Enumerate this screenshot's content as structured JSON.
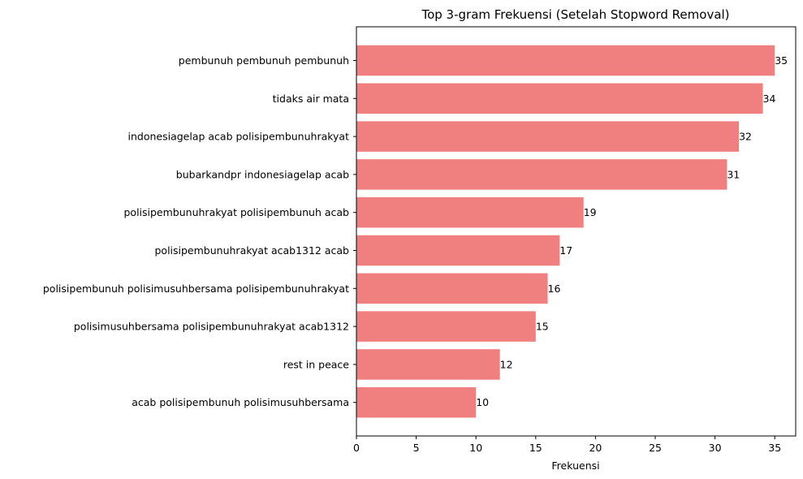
{
  "chart_data": {
    "type": "bar",
    "orientation": "horizontal",
    "title": "Top 3-gram Frekuensi (Setelah Stopword Removal)",
    "xlabel": "Frekuensi",
    "ylabel": "",
    "categories": [
      "pembunuh pembunuh pembunuh",
      "tidaks air mata",
      "indonesiagelap acab polisipembunuhrakyat",
      "bubarkandpr indonesiagelap acab",
      "polisipembunuhrakyat polisipembunuh acab",
      "polisipembunuhrakyat acab1312 acab",
      "polisipembunuh polisimusuhbersama polisipembunuhrakyat",
      "polisimusuhbersama polisipembunuhrakyat acab1312",
      "rest in peace",
      "acab polisipembunuh polisimusuhbersama"
    ],
    "values": [
      35,
      34,
      32,
      31,
      19,
      17,
      16,
      15,
      12,
      10
    ],
    "xlim": [
      0,
      36.75
    ],
    "xticks": [
      0,
      5,
      10,
      15,
      20,
      25,
      30,
      35
    ],
    "grid": false,
    "bar_color": "#f08080"
  }
}
